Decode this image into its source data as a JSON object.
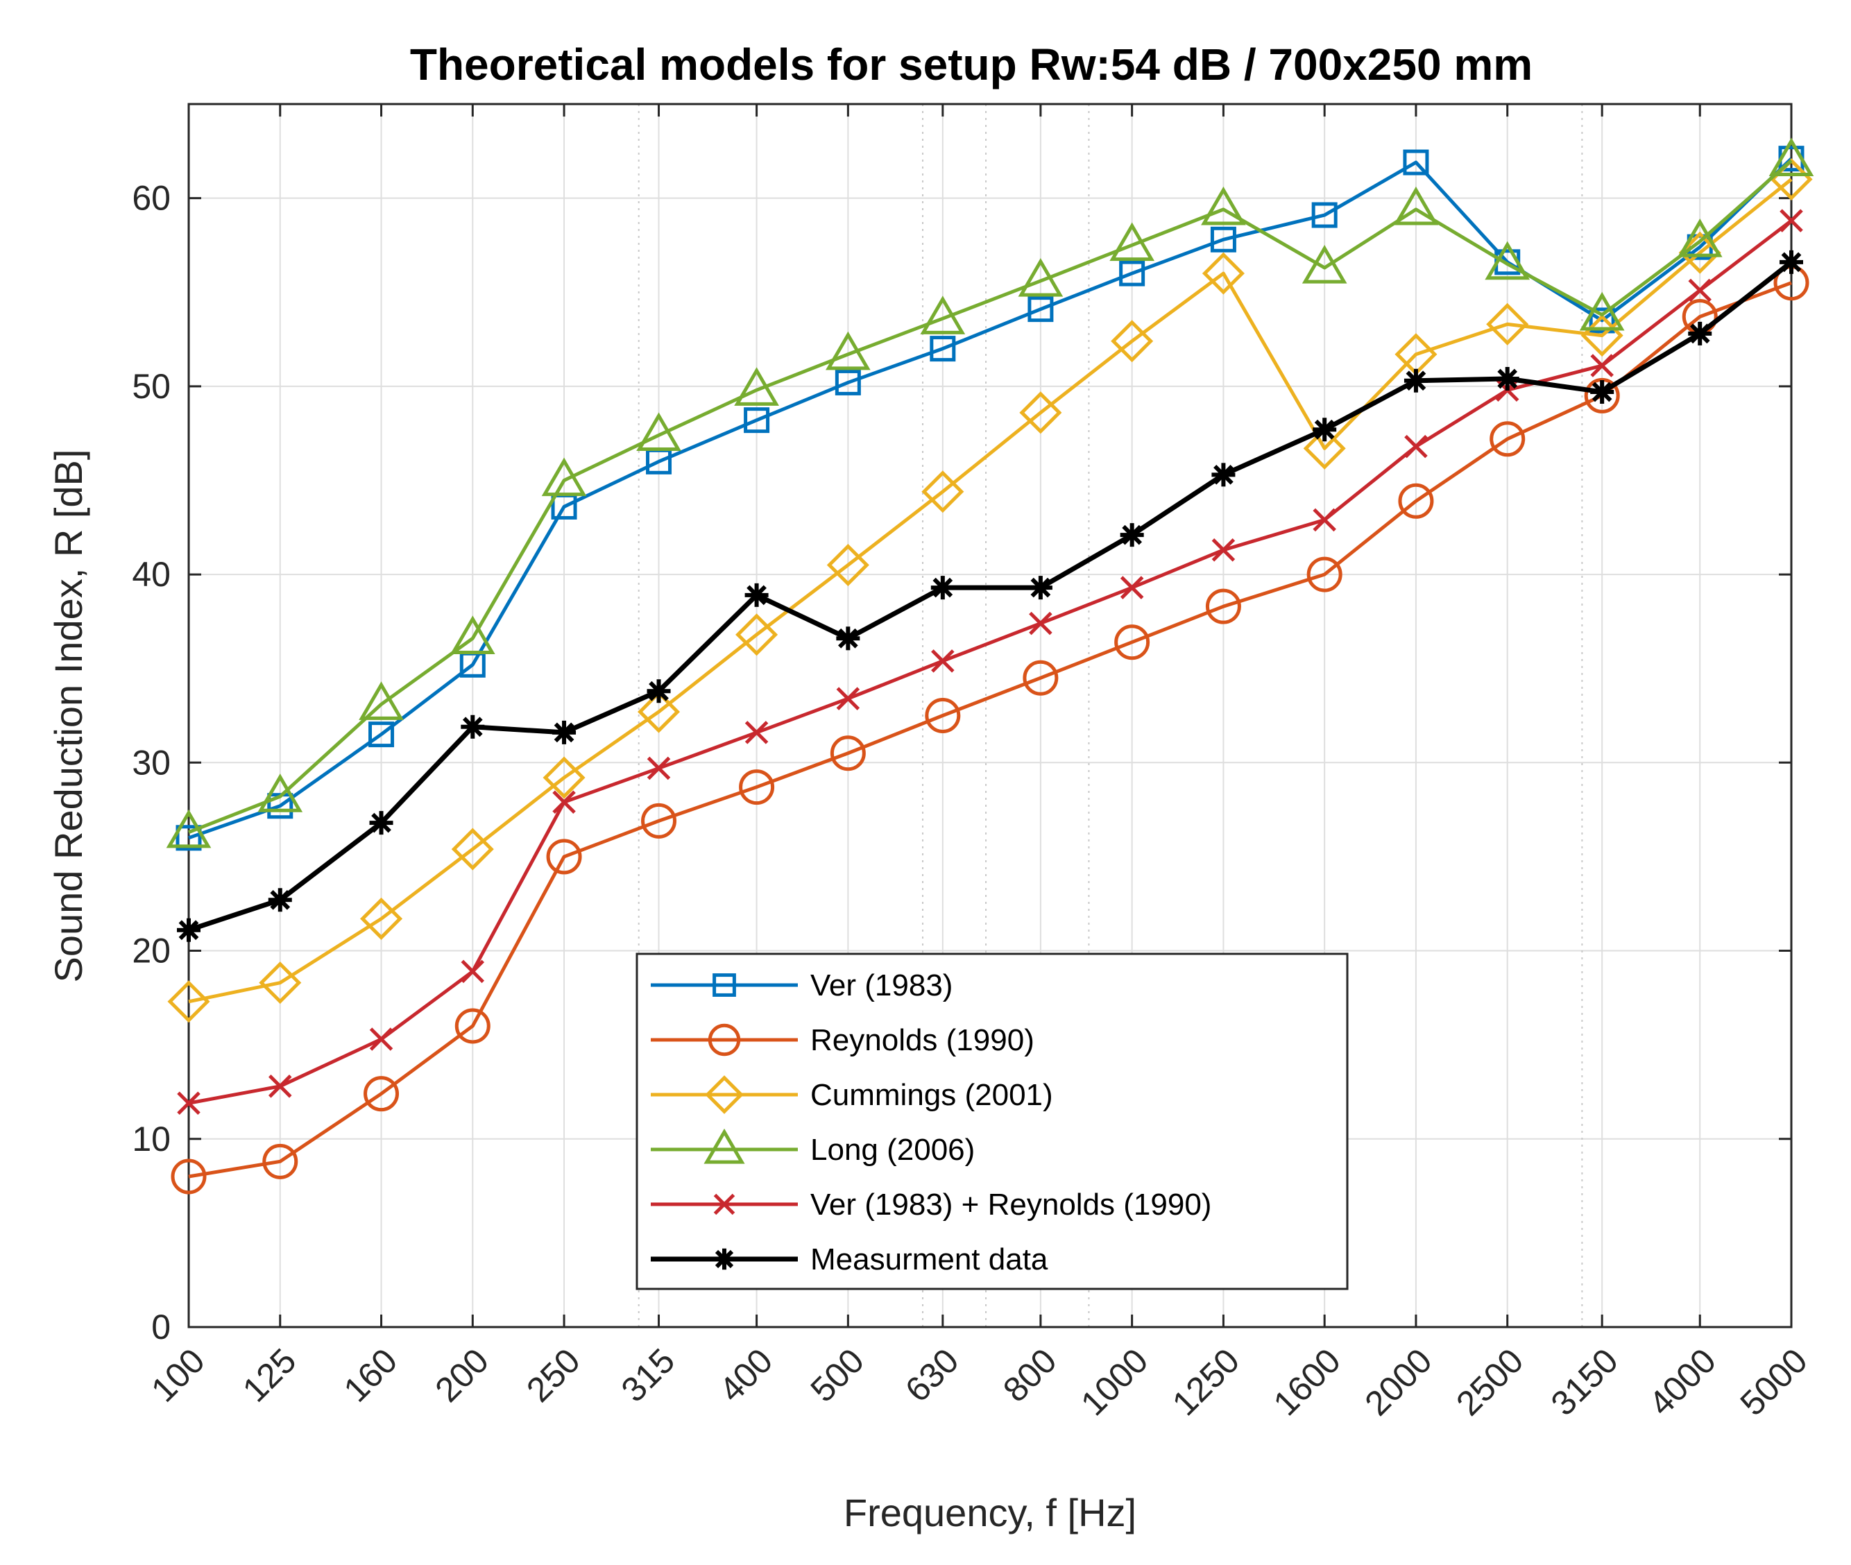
{
  "chart_data": {
    "type": "line",
    "title": "Theoretical models for setup Rw:54 dB / 700x250 mm",
    "xlabel": "Frequency, f [Hz]",
    "ylabel": "Sound Reduction Index, R [dB]",
    "ylim": [
      0,
      65
    ],
    "yticks": [
      0,
      10,
      20,
      30,
      40,
      50,
      60
    ],
    "x_scale": "log",
    "grid": true,
    "legend_position": "bottom-center",
    "categories": [
      "100",
      "125",
      "160",
      "200",
      "250",
      "315",
      "400",
      "500",
      "630",
      "800",
      "1000",
      "1250",
      "1600",
      "2000",
      "2500",
      "3150",
      "4000",
      "5000"
    ],
    "series": [
      {
        "name": "Ver (1983)",
        "color": "#0072BD",
        "marker": "square",
        "values": [
          26.0,
          27.7,
          31.5,
          35.2,
          43.6,
          46.0,
          48.2,
          50.2,
          52.0,
          54.1,
          56.0,
          57.8,
          59.1,
          61.9,
          56.6,
          53.5,
          57.4,
          62.1
        ]
      },
      {
        "name": "Reynolds (1990)",
        "color": "#D95319",
        "marker": "circle",
        "values": [
          8.0,
          8.8,
          12.4,
          16.0,
          25.0,
          26.9,
          28.7,
          30.5,
          32.5,
          34.5,
          36.4,
          38.3,
          40.0,
          43.9,
          47.2,
          49.5,
          53.7,
          55.5
        ]
      },
      {
        "name": "Cummings (2001)",
        "color": "#EDB120",
        "marker": "diamond",
        "values": [
          17.3,
          18.3,
          21.7,
          25.4,
          29.2,
          32.7,
          36.8,
          40.5,
          44.4,
          48.6,
          52.4,
          56.0,
          46.7,
          51.7,
          53.3,
          52.7,
          57.1,
          61.0
        ]
      },
      {
        "name": "Long (2006)",
        "color": "#77AC30",
        "marker": "triangle",
        "values": [
          26.3,
          28.2,
          33.1,
          36.6,
          45.0,
          47.4,
          49.8,
          51.7,
          53.6,
          55.6,
          57.5,
          59.4,
          56.3,
          59.4,
          56.5,
          53.8,
          57.7,
          62.0
        ]
      },
      {
        "name": "Ver (1983) + Reynolds (1990)",
        "color": "#C8282E",
        "marker": "x",
        "values": [
          11.9,
          12.8,
          15.3,
          18.9,
          27.9,
          29.7,
          31.6,
          33.4,
          35.4,
          37.4,
          39.3,
          41.3,
          42.9,
          46.8,
          49.8,
          51.1,
          55.1,
          58.8
        ]
      },
      {
        "name": "Measurment data",
        "color": "#000000",
        "marker": "asterisk",
        "values": [
          21.1,
          22.7,
          26.8,
          31.9,
          31.6,
          33.8,
          38.9,
          36.6,
          39.3,
          39.3,
          42.1,
          45.3,
          47.7,
          50.3,
          50.4,
          49.7,
          52.8,
          56.6
        ]
      }
    ]
  }
}
